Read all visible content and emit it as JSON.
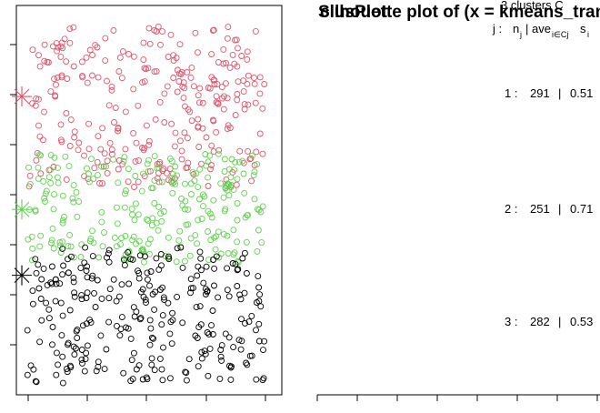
{
  "chart_data": {
    "type": "scatter",
    "title": "Silhouette plot of (x = kmeans_tran",
    "overlap_title": "clusPlot",
    "colors": {
      "cluster_1": "#DF536B",
      "cluster_2": "#61D04F",
      "cluster_3": "#000000"
    },
    "clusters": [
      {
        "id": 1,
        "color": "#DF536B",
        "n": 291,
        "center": {
          "x": 0.0,
          "y": 5.05
        },
        "y_range": [
          3.3,
          6.4
        ]
      },
      {
        "id": 2,
        "color": "#61D04F",
        "n": 251,
        "center": {
          "x": 0.0,
          "y": 2.87
        },
        "y_range": [
          1.85,
          3.95
        ]
      },
      {
        "id": 3,
        "color": "#000000",
        "n": 282,
        "center": {
          "x": 0.0,
          "y": 1.6
        },
        "y_range": [
          -0.5,
          2.15
        ]
      }
    ],
    "xlim": [
      0.0,
      4.3
    ],
    "ylim": [
      -0.6,
      6.7
    ],
    "silhouette": {
      "header": {
        "clusters": "3  clusters  C",
        "j": "j :",
        "n": "n",
        "n_sub": "j",
        "sep": "|",
        "ave": "ave",
        "ave_sub": "i∈Cj",
        "s": "s",
        "s_sub": "i"
      },
      "rows": [
        {
          "label": "1 :",
          "n": "291",
          "sep": "|",
          "ave": "0.51"
        },
        {
          "label": "2 :",
          "n": "251",
          "sep": "|",
          "ave": "0.71"
        },
        {
          "label": "3 :",
          "n": "282",
          "sep": "|",
          "ave": "0.53"
        }
      ]
    }
  }
}
